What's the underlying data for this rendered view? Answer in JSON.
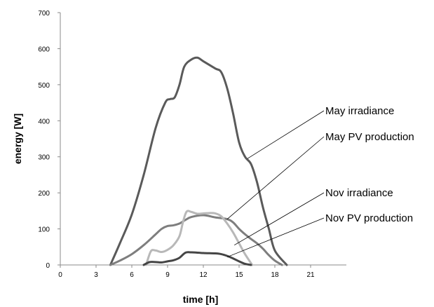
{
  "chart_data": {
    "type": "line",
    "title": "",
    "xlabel": "time [h]",
    "ylabel": "energy [W]",
    "xlim": [
      0,
      24
    ],
    "ylim": [
      0,
      700
    ],
    "xticks": [
      0,
      3,
      6,
      9,
      12,
      15,
      18,
      21
    ],
    "yticks": [
      0,
      100,
      200,
      300,
      400,
      500,
      600,
      700
    ],
    "grid": false,
    "series": [
      {
        "name": "May irradiance",
        "color": "#5a5a5a",
        "x": [
          4.2,
          5,
          6,
          7,
          8,
          8.8,
          9.2,
          9.6,
          10,
          10.4,
          11,
          11.5,
          12,
          13,
          13.5,
          14,
          14.5,
          15,
          15.5,
          16,
          16.5,
          17,
          17.5,
          18,
          19
        ],
        "y": [
          0,
          60,
          140,
          250,
          380,
          450,
          460,
          465,
          500,
          550,
          570,
          575,
          565,
          545,
          535,
          490,
          420,
          340,
          300,
          280,
          230,
          160,
          100,
          40,
          0
        ],
        "annotation": {
          "label": "May irradiance",
          "x": 15.7,
          "y": 295
        }
      },
      {
        "name": "May PV production",
        "color": "#7e7e7e",
        "x": [
          4.2,
          5,
          6,
          7,
          8,
          8.5,
          9,
          9.5,
          10,
          10.5,
          11,
          12,
          13,
          14,
          14.5,
          15,
          15.5,
          16,
          16.5,
          17,
          17.5,
          18,
          18.6
        ],
        "y": [
          0,
          12,
          30,
          55,
          85,
          100,
          108,
          110,
          115,
          125,
          133,
          138,
          132,
          127,
          118,
          100,
          85,
          72,
          60,
          45,
          27,
          12,
          0
        ],
        "annotation": {
          "label": "May PV production",
          "x": 14,
          "y": 127
        }
      },
      {
        "name": "Nov irradiance",
        "color": "#b8b8b8",
        "x": [
          7.2,
          7.6,
          8,
          8.5,
          9,
          9.5,
          10,
          10.3,
          10.6,
          11,
          11.5,
          12,
          12.5,
          13,
          13.5,
          14,
          14.5,
          15,
          15.5,
          16.1
        ],
        "y": [
          0,
          38,
          40,
          36,
          42,
          55,
          80,
          120,
          148,
          147,
          142,
          143,
          144,
          143,
          135,
          115,
          90,
          60,
          30,
          0
        ],
        "annotation": {
          "label": "Nov irradiance",
          "x": 14.6,
          "y": 55
        }
      },
      {
        "name": "Nov PV production",
        "color": "#454545",
        "x": [
          7,
          7.5,
          8,
          8.5,
          9,
          9.5,
          10,
          10.5,
          11,
          12,
          13,
          13.5,
          14,
          14.5,
          15,
          15.5,
          16
        ],
        "y": [
          0,
          8,
          8,
          7,
          10,
          13,
          20,
          34,
          35,
          33,
          32,
          30,
          25,
          18,
          10,
          3,
          0
        ],
        "annotation": {
          "label": "Nov PV production",
          "x": 14,
          "y": 22
        }
      }
    ]
  }
}
